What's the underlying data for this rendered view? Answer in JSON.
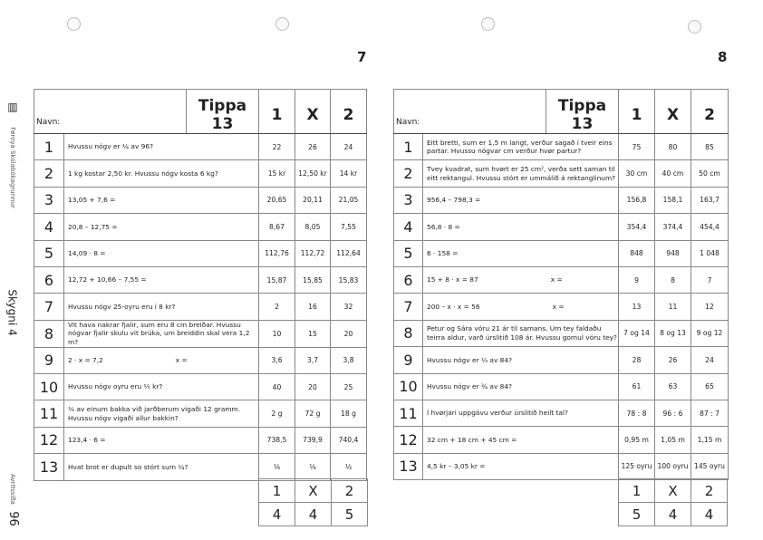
{
  "sidebar": {
    "publisher": "Føroya Skúlabókagrunnur",
    "book": "Skygni 4",
    "label": "Avritssíða",
    "page": "96"
  },
  "header": {
    "name_label": "Navn:",
    "title": "Tippa 13",
    "col1": "1",
    "colX": "X",
    "col2": "2"
  },
  "pages": [
    {
      "page_number": "7",
      "rows": [
        {
          "n": "1",
          "q": "Hvussu nógv er ¼ av 96?",
          "x": "",
          "a": [
            "22",
            "26",
            "24"
          ]
        },
        {
          "n": "2",
          "q": "1 kg kostar 2,50 kr. Hvussu nógv kosta 6 kg?",
          "x": "",
          "a": [
            "15 kr",
            "12,50 kr",
            "14 kr"
          ]
        },
        {
          "n": "3",
          "q": "13,05 + 7,6 =",
          "x": "",
          "a": [
            "20,65",
            "20,11",
            "21,05"
          ]
        },
        {
          "n": "4",
          "q": "20,8 – 12,75 =",
          "x": "",
          "a": [
            "8,67",
            "8,05",
            "7,55"
          ]
        },
        {
          "n": "5",
          "q": "14,09 · 8 =",
          "x": "",
          "a": [
            "112,76",
            "112,72",
            "112,64"
          ]
        },
        {
          "n": "6",
          "q": "12,72 + 10,66 – 7,55 =",
          "x": "",
          "a": [
            "15,87",
            "15,85",
            "15,83"
          ]
        },
        {
          "n": "7",
          "q": "Hvussu nógv 25-oyru eru í 8 kr?",
          "x": "",
          "a": [
            "2",
            "16",
            "32"
          ]
        },
        {
          "n": "8",
          "q": "Vit hava nakrar fjalir, sum eru 8 cm breiðar. Hvussu nógvar fjalir skulu vit brúka, um breiddin skal vera 1,2 m?",
          "x": "",
          "a": [
            "10",
            "15",
            "20"
          ]
        },
        {
          "n": "9",
          "q": "2 · x = 7,2",
          "x": "x =",
          "a": [
            "3,6",
            "3,7",
            "3,8"
          ]
        },
        {
          "n": "10",
          "q": "Hvussu nógv oyru eru ⅖ kr?",
          "x": "",
          "a": [
            "40",
            "20",
            "25"
          ]
        },
        {
          "n": "11",
          "q": "⅙ av einum bakka við jarðberum vigaði 12 gramm. Hvussu nógv vigaði allur bakkin?",
          "x": "",
          "a": [
            "2 g",
            "72 g",
            "18 g"
          ]
        },
        {
          "n": "12",
          "q": "123,4 · 6 =",
          "x": "",
          "a": [
            "738,5",
            "739,9",
            "740,4"
          ]
        },
        {
          "n": "13",
          "q": "Hvat brot er dupult so stórt sum ¼?",
          "x": "",
          "a": [
            "⅙",
            "⅛",
            "½"
          ]
        }
      ],
      "summary": {
        "labels": [
          "1",
          "X",
          "2"
        ],
        "counts": [
          "4",
          "4",
          "5"
        ]
      }
    },
    {
      "page_number": "8",
      "rows": [
        {
          "n": "1",
          "q": "Eitt bretti, sum er 1,5 m langt, verður sagað í tveir eins partar. Hvussu nógvar cm verður hvør partur?",
          "x": "",
          "a": [
            "75",
            "80",
            "85"
          ]
        },
        {
          "n": "2",
          "q": "Tvey kvadrat, sum hvørt er 25 cm², verða sett saman til eitt rektangul. Hvussu stórt er ummálið á rektanglinum?",
          "x": "",
          "a": [
            "30 cm",
            "40 cm",
            "50 cm"
          ]
        },
        {
          "n": "3",
          "q": "956,4 – 798,3 =",
          "x": "",
          "a": [
            "156,8",
            "158,1",
            "163,7"
          ]
        },
        {
          "n": "4",
          "q": "56,8 · 8 =",
          "x": "",
          "a": [
            "354,4",
            "374,4",
            "454,4"
          ]
        },
        {
          "n": "5",
          "q": "6 · 158 =",
          "x": "",
          "a": [
            "848",
            "948",
            "1 048"
          ]
        },
        {
          "n": "6",
          "q": "15 + 8 · x = 87",
          "x": "x =",
          "a": [
            "9",
            "8",
            "7"
          ]
        },
        {
          "n": "7",
          "q": "200 – x · x = 56",
          "x": "x =",
          "a": [
            "13",
            "11",
            "12"
          ]
        },
        {
          "n": "8",
          "q": "Petur og Sára vóru 21 ár til samans. Um tey faldaðu teirra aldur, varð úrslitið 108 ár. Hvussu gomul vóru tey?",
          "x": "",
          "a": [
            "7 og 14",
            "8 og 13",
            "9 og 12"
          ]
        },
        {
          "n": "9",
          "q": "Hvussu nógv er ⅓ av 84?",
          "x": "",
          "a": [
            "28",
            "26",
            "24"
          ]
        },
        {
          "n": "10",
          "q": "Hvussu nógv er ¾ av 84?",
          "x": "",
          "a": [
            "61",
            "63",
            "65"
          ]
        },
        {
          "n": "11",
          "q": "Í hvørjari uppgávu verður úrslitið heilt tal?",
          "x": "",
          "a": [
            "78 : 8",
            "96 : 6",
            "87 : 7"
          ]
        },
        {
          "n": "12",
          "q": "32 cm + 18 cm + 45 cm =",
          "x": "",
          "a": [
            "0,95 m",
            "1,05 m",
            "1,15 m"
          ]
        },
        {
          "n": "13",
          "q": "4,5 kr – 3,05 kr =",
          "x": "",
          "a": [
            "125 oyru",
            "100 oyru",
            "145 oyru"
          ]
        }
      ],
      "summary": {
        "labels": [
          "1",
          "X",
          "2"
        ],
        "counts": [
          "5",
          "4",
          "4"
        ]
      }
    }
  ]
}
